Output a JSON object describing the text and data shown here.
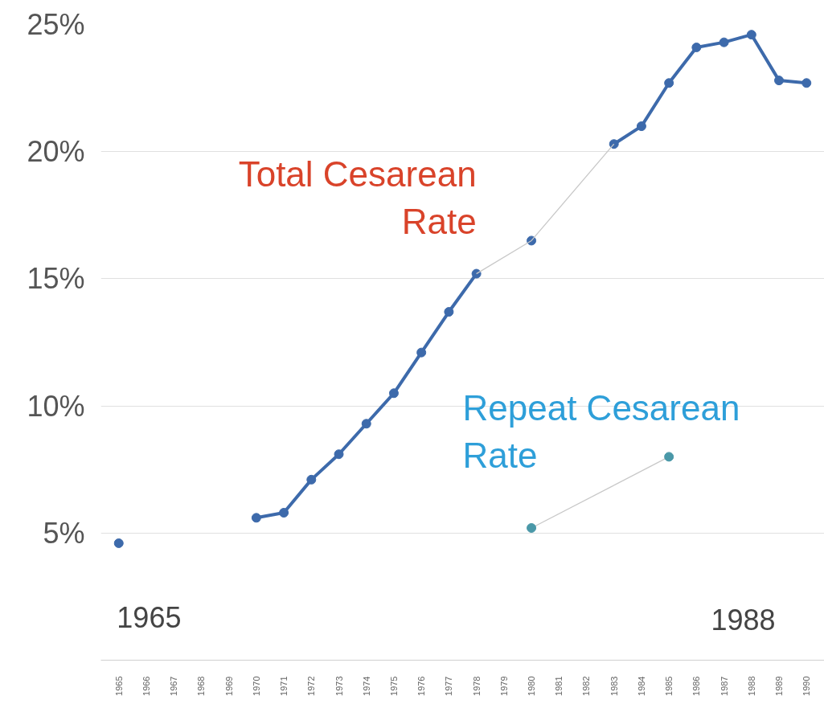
{
  "chart_data": {
    "type": "line",
    "categories": [
      "1965",
      "1966",
      "1967",
      "1968",
      "1969",
      "1970",
      "1971",
      "1972",
      "1973",
      "1974",
      "1975",
      "1976",
      "1977",
      "1978",
      "1979",
      "1980",
      "1981",
      "1982",
      "1983",
      "1984",
      "1985",
      "1986",
      "1987",
      "1988",
      "1989",
      "1990"
    ],
    "series": [
      {
        "name": "Total Cesarean Rate",
        "marker": "circle",
        "color": "#3d6aab",
        "values": [
          4.6,
          null,
          null,
          null,
          null,
          5.6,
          5.8,
          7.1,
          8.1,
          9.3,
          10.5,
          12.1,
          13.7,
          15.2,
          null,
          16.5,
          null,
          null,
          20.3,
          21.0,
          22.7,
          24.1,
          24.3,
          24.6,
          22.8,
          22.7
        ]
      },
      {
        "marker": "none",
        "color": "#c8c8c8",
        "values": [
          null,
          null,
          null,
          null,
          null,
          null,
          null,
          null,
          null,
          null,
          null,
          null,
          null,
          15.2,
          null,
          16.5,
          null,
          null,
          20.3,
          null,
          null,
          null,
          null,
          null,
          null,
          null
        ]
      },
      {
        "marker": "none",
        "color": "#c8c8c8",
        "values": [
          null,
          null,
          null,
          null,
          null,
          null,
          null,
          null,
          null,
          null,
          null,
          null,
          null,
          null,
          null,
          5.2,
          null,
          null,
          null,
          null,
          8.0,
          null,
          null,
          null,
          null,
          null
        ]
      },
      {
        "name": "Repeat Cesarean Rate",
        "type": "scatter",
        "marker": "circle",
        "color": "#4a98a8",
        "values": [
          null,
          null,
          null,
          null,
          null,
          null,
          null,
          null,
          null,
          null,
          null,
          null,
          null,
          null,
          null,
          5.2,
          null,
          null,
          null,
          null,
          8.0,
          null,
          null,
          null,
          null,
          null
        ]
      }
    ],
    "ylim": [
      0,
      25
    ],
    "yticks": [
      {
        "value": 5,
        "label": "5%"
      },
      {
        "value": 10,
        "label": "10%"
      },
      {
        "value": 15,
        "label": "15%"
      },
      {
        "value": 20,
        "label": "20%"
      },
      {
        "value": 25,
        "label": "25%"
      }
    ],
    "grid": "y",
    "annotations": [
      "1965",
      "1988"
    ]
  }
}
